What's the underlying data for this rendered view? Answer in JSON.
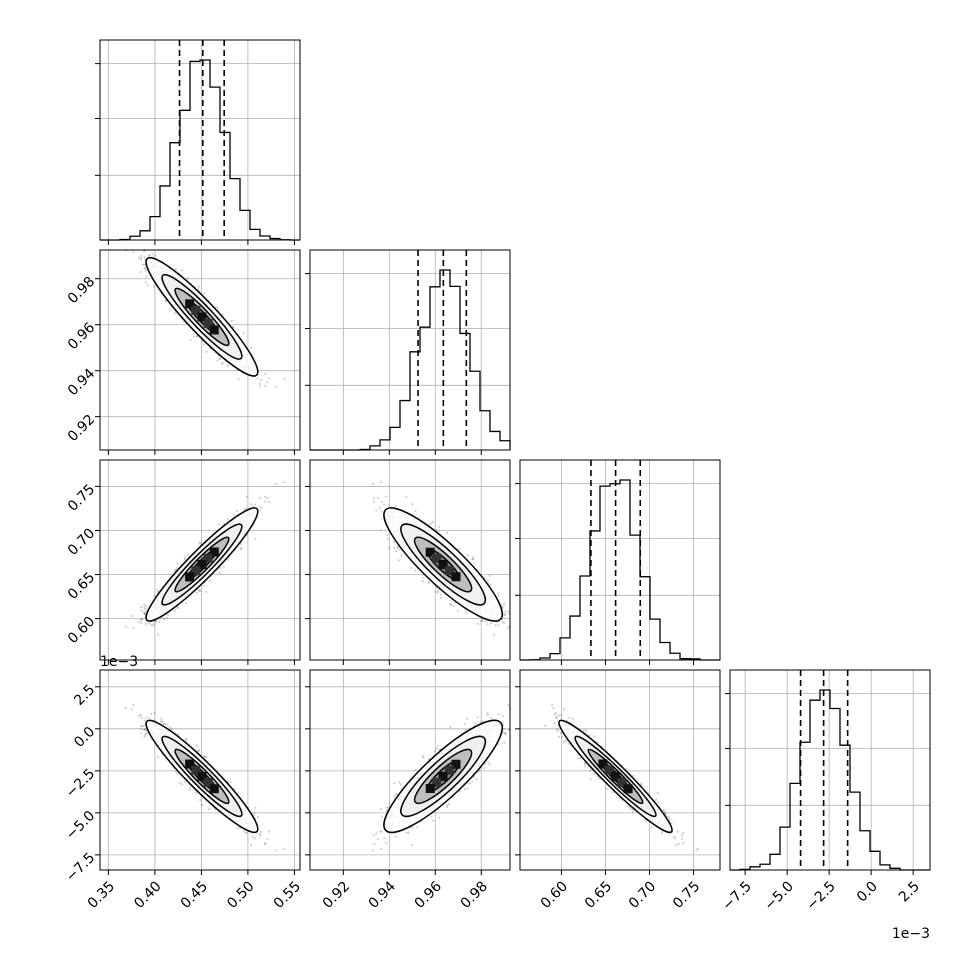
{
  "chart_data": {
    "type": "corner",
    "title": "",
    "parameters": [
      {
        "name": "",
        "range": [
          0.341,
          0.556
        ],
        "ticks": [
          0.35,
          0.4,
          0.45,
          0.5,
          0.55
        ],
        "tick_labels": [
          "0.35",
          "0.40",
          "0.45",
          "0.50",
          "0.55"
        ],
        "mean": 0.4506,
        "sigma": 0.0245,
        "quantiles": [
          0.4265,
          0.4515,
          0.4745
        ]
      },
      {
        "name": "",
        "range": [
          0.9055,
          0.9925
        ],
        "ticks": [
          0.92,
          0.94,
          0.96,
          0.98
        ],
        "tick_labels": [
          "0.92",
          "0.94",
          "0.96",
          "0.98"
        ],
        "mean": 0.9634,
        "sigma": 0.0105,
        "quantiles": [
          0.9525,
          0.9635,
          0.9735
        ]
      },
      {
        "name": "",
        "range": [
          0.553,
          0.78
        ],
        "ticks": [
          0.6,
          0.65,
          0.7,
          0.75
        ],
        "tick_labels": [
          "0.60",
          "0.65",
          "0.70",
          "0.75"
        ],
        "mean": 0.6614,
        "sigma": 0.0262,
        "quantiles": [
          0.6335,
          0.6615,
          0.6895
        ]
      },
      {
        "name": "",
        "range": [
          -8.4,
          3.5
        ],
        "ticks": [
          -7.5,
          -5.0,
          -2.5,
          0.0,
          2.5
        ],
        "tick_labels": [
          "−7.5",
          "−5.0",
          "−2.5",
          "0.0",
          "2.5"
        ],
        "offset_label": "1e−3",
        "mean": -2.83,
        "sigma": 1.36,
        "quantiles": [
          -4.2,
          -2.83,
          -1.4
        ]
      }
    ],
    "correlations": [
      {
        "pair": [
          0,
          1
        ],
        "r": -0.93
      },
      {
        "pair": [
          0,
          2
        ],
        "r": 0.94
      },
      {
        "pair": [
          0,
          3
        ],
        "r": -0.94
      },
      {
        "pair": [
          1,
          2
        ],
        "r": -0.88
      },
      {
        "pair": [
          1,
          3
        ],
        "r": 0.87
      },
      {
        "pair": [
          2,
          3
        ],
        "r": -0.96
      }
    ],
    "grid": true,
    "histogram_style": "step",
    "quantile_lines": "dashed",
    "colors": {
      "line": "#000000",
      "grid": "#b0b0b0",
      "scatter": "#555555"
    }
  }
}
